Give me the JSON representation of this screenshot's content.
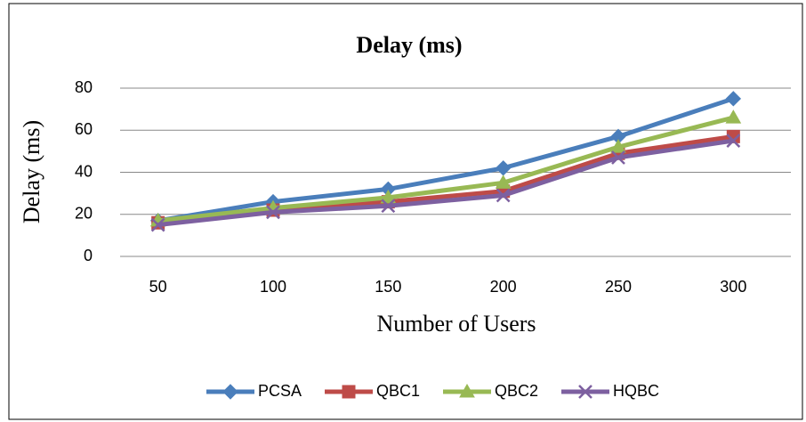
{
  "chart_data": {
    "type": "line",
    "title": "Delay (ms)",
    "x_label": "Number of Users",
    "y_label": "Delay (ms)",
    "categories": [
      "50",
      "100",
      "150",
      "200",
      "250",
      "300"
    ],
    "series": [
      {
        "name": "PCSA",
        "color": "#4a7ebb",
        "marker": "diamond",
        "values": [
          17,
          26,
          32,
          42,
          57,
          75
        ]
      },
      {
        "name": "QBC1",
        "color": "#be4b48",
        "marker": "square",
        "values": [
          16,
          22,
          26,
          31,
          49,
          57
        ]
      },
      {
        "name": "QBC2",
        "color": "#98b954",
        "marker": "triangle",
        "values": [
          17,
          23,
          28,
          35,
          52,
          66
        ]
      },
      {
        "name": "HQBC",
        "color": "#7d60a0",
        "marker": "x",
        "values": [
          15,
          21,
          24,
          29,
          47,
          55
        ]
      }
    ],
    "ylim": [
      0,
      80
    ],
    "yticks": [
      0,
      20,
      40,
      60,
      80
    ],
    "grid": true,
    "legend": "bottom"
  }
}
